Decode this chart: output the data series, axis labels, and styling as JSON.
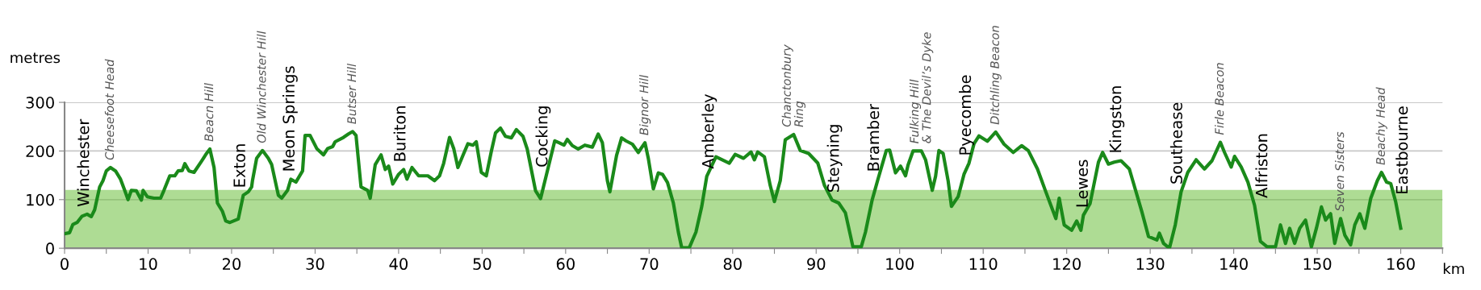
{
  "chart_data": {
    "type": "line",
    "xlabel": "km",
    "ylabel": "metres",
    "color": "#1a8a1a",
    "grid": "y",
    "marker": "none",
    "line_style": "solid",
    "xlim": [
      0,
      165
    ],
    "ylim": [
      0,
      300
    ],
    "xticks": [
      0,
      {
        "value": 5,
        "label": null
      },
      10,
      {
        "value": 15,
        "label": null
      },
      20,
      {
        "value": 25,
        "label": null
      },
      30,
      {
        "value": 35,
        "label": null
      },
      40,
      {
        "value": 45,
        "label": null
      },
      50,
      {
        "value": 55,
        "label": null
      },
      60,
      {
        "value": 65,
        "label": null
      },
      70,
      {
        "value": 75,
        "label": null
      },
      80,
      {
        "value": 85,
        "label": null
      },
      90,
      {
        "value": 95,
        "label": null
      },
      100,
      {
        "value": 105,
        "label": null
      },
      110,
      {
        "value": 115,
        "label": null
      },
      120,
      {
        "value": 125,
        "label": null
      },
      130,
      {
        "value": 135,
        "label": null
      },
      140,
      {
        "value": 145,
        "label": null
      },
      150,
      {
        "value": 155,
        "label": null
      },
      160,
      {
        "value": 165,
        "label": null
      }
    ],
    "yticks": [
      0,
      100,
      200,
      300
    ],
    "bands": [
      {
        "axis": "y",
        "from": 0,
        "to": 120,
        "color": "#6cbf3c"
      }
    ],
    "x": [
      0,
      0.6,
      1,
      1.5,
      2.1,
      2.7,
      3.2,
      3.6,
      4.2,
      4.6,
      5,
      5.5,
      6.1,
      6.7,
      7.2,
      7.6,
      8.0,
      8.6,
      9.2,
      9.4,
      9.9,
      10.7,
      11.5,
      11.9,
      12.6,
      13.2,
      13.6,
      14.1,
      14.4,
      14.9,
      15.5,
      16.4,
      17,
      17.4,
      17.9,
      18.3,
      18.9,
      19.3,
      19.8,
      20.8,
      21.4,
      22,
      22.4,
      22.5,
      23,
      23.7,
      24.4,
      24.8,
      25.6,
      26,
      26.7,
      27.1,
      27.7,
      28.5,
      28.8,
      29.4,
      30.2,
      31,
      31.5,
      32.1,
      32.4,
      33.4,
      34,
      34.5,
      34.9,
      35.5,
      36.3,
      36.6,
      37.2,
      37.9,
      38.4,
      38.8,
      39.3,
      40,
      40.6,
      41,
      41.6,
      42.4,
      43.5,
      44.3,
      44.9,
      45.4,
      46.1,
      46.6,
      47.1,
      47.8,
      48.3,
      48.9,
      49.3,
      49.9,
      50.5,
      51.1,
      51.6,
      52.2,
      52.8,
      53.5,
      54.1,
      54.9,
      55.4,
      56.4,
      57,
      57.7,
      58.7,
      59.2,
      59.8,
      60.2,
      60.8,
      61.5,
      62.3,
      63.2,
      63.9,
      64.4,
      65,
      65.3,
      66.1,
      66.7,
      67.2,
      68,
      68.7,
      69.5,
      69.9,
      70.5,
      71.1,
      71.6,
      72.2,
      72.9,
      73.5,
      73.9,
      74.8,
      75.6,
      76.3,
      76.9,
      78,
      79.6,
      80.3,
      81.3,
      82.2,
      82.6,
      83,
      83.8,
      84.5,
      85,
      85.7,
      86.3,
      87.3,
      88.1,
      89.1,
      90.2,
      91,
      91.9,
      92.7,
      93.5,
      94.4,
      95.4,
      95.9,
      96.7,
      97.4,
      98.4,
      98.8,
      99.5,
      100.1,
      100.7,
      101,
      101.6,
      102.6,
      103.1,
      103.9,
      104.3,
      104.7,
      105.2,
      105.8,
      106.2,
      107,
      107.7,
      108.3,
      108.9,
      109.5,
      110.5,
      111.5,
      112.5,
      113.6,
      114.6,
      115.4,
      116.5,
      117.5,
      118.7,
      119.1,
      119.7,
      120.6,
      121.2,
      121.7,
      122,
      122.8,
      123.8,
      124.3,
      125,
      125.7,
      126.5,
      127.5,
      128.2,
      129,
      129.8,
      130.8,
      131.1,
      131.6,
      132.3,
      133,
      133.7,
      134.5,
      135.5,
      136.5,
      137.4,
      138.4,
      138.9,
      139.7,
      140.1,
      140.9,
      141.7,
      142.5,
      143.2,
      144,
      145,
      145.6,
      146.2,
      146.7,
      147.3,
      147.9,
      148.6,
      149.3,
      149.9,
      150.5,
      151,
      151.6,
      152.1,
      152.8,
      153.3,
      154,
      154.5,
      155.1,
      155.7,
      156.4,
      157.2,
      157.7,
      158.3,
      158.8,
      159.4,
      160
    ],
    "values": [
      30,
      32,
      49,
      53,
      66,
      70,
      65,
      79,
      126,
      139,
      159,
      166,
      159,
      142,
      119,
      100,
      119,
      118,
      99,
      119,
      106,
      103,
      103,
      119,
      149,
      149,
      159,
      160,
      174,
      159,
      156,
      179,
      195,
      204,
      166,
      93,
      76,
      56,
      53,
      60,
      109,
      116,
      126,
      139,
      185,
      201,
      185,
      172,
      109,
      103,
      119,
      142,
      136,
      159,
      232,
      232,
      205,
      192,
      205,
      209,
      219,
      228,
      235,
      240,
      232,
      126,
      119,
      103,
      172,
      192,
      162,
      169,
      132,
      152,
      162,
      142,
      166,
      149,
      149,
      139,
      149,
      175,
      228,
      205,
      166,
      195,
      215,
      212,
      219,
      156,
      149,
      199,
      237,
      247,
      230,
      227,
      244,
      230,
      204,
      118,
      102,
      151,
      221,
      217,
      212,
      224,
      211,
      204,
      212,
      208,
      235,
      217,
      139,
      116,
      191,
      227,
      221,
      214,
      197,
      217,
      185,
      122,
      155,
      152,
      135,
      93,
      33,
      1,
      1,
      33,
      86,
      148,
      188,
      175,
      193,
      185,
      198,
      182,
      198,
      188,
      129,
      96,
      139,
      223,
      234,
      201,
      195,
      175,
      129,
      99,
      93,
      73,
      3,
      3,
      33,
      99,
      142,
      201,
      202,
      155,
      169,
      149,
      171,
      200,
      200,
      182,
      119,
      148,
      201,
      195,
      139,
      86,
      106,
      152,
      175,
      215,
      231,
      220,
      239,
      214,
      197,
      211,
      201,
      163,
      116,
      61,
      103,
      48,
      37,
      56,
      37,
      68,
      92,
      177,
      197,
      173,
      177,
      180,
      163,
      122,
      75,
      24,
      17,
      31,
      10,
      0,
      48,
      116,
      156,
      182,
      163,
      180,
      218,
      197,
      167,
      189,
      167,
      136,
      88,
      14,
      3,
      3,
      48,
      10,
      41,
      10,
      41,
      58,
      3,
      41,
      85,
      58,
      71,
      10,
      61,
      27,
      7,
      48,
      71,
      41,
      102,
      139,
      156,
      136,
      133,
      95,
      41
    ],
    "annotations": [
      {
        "text": "Winchester",
        "x": 2.1,
        "y": 66
      },
      {
        "text": "Cheesefoot Head",
        "x": 5.5,
        "y": 166
      },
      {
        "text": "Beacn Hill",
        "x": 17.4,
        "y": 204
      },
      {
        "text": "Exton",
        "x": 20.8,
        "y": 60
      },
      {
        "text": "Old Winchester Hill",
        "x": 23.7,
        "y": 201
      },
      {
        "text": "Meon Springs",
        "x": 26.7,
        "y": 119
      },
      {
        "text": "Butser Hill",
        "x": 34.5,
        "y": 240
      },
      {
        "text": "Buriton",
        "x": 40,
        "y": 152
      },
      {
        "text": "Cocking",
        "x": 57,
        "y": 102
      },
      {
        "text": "Bignor Hill",
        "x": 69.5,
        "y": 217
      },
      {
        "text": "Amberley",
        "x": 76.9,
        "y": 148
      },
      {
        "text": "Chanctonbury\nRing",
        "x": 87.3,
        "y": 234
      },
      {
        "text": "Steyning",
        "x": 91.9,
        "y": 99
      },
      {
        "text": "Bramber",
        "x": 96.7,
        "y": 99
      },
      {
        "text": "Fulking Hill\n& The Devil’s Dyke",
        "x": 102.6,
        "y": 200
      },
      {
        "text": "Pyecombe",
        "x": 107.7,
        "y": 152
      },
      {
        "text": "Ditchling Beacon",
        "x": 111.5,
        "y": 239
      },
      {
        "text": "Lewes",
        "x": 121.7,
        "y": 37
      },
      {
        "text": "Kingston",
        "x": 125.7,
        "y": 177
      },
      {
        "text": "Southease",
        "x": 133,
        "y": 48
      },
      {
        "text": "Firle Beacon",
        "x": 138.4,
        "y": 218
      },
      {
        "text": "Alfriston",
        "x": 143.2,
        "y": 14
      },
      {
        "text": "Seven Sisters",
        "x": 152.8,
        "y": 61
      },
      {
        "text": "Beachy Head",
        "x": 157.7,
        "y": 156
      },
      {
        "text": "Eastbourne",
        "x": 160,
        "y": 41
      }
    ]
  }
}
